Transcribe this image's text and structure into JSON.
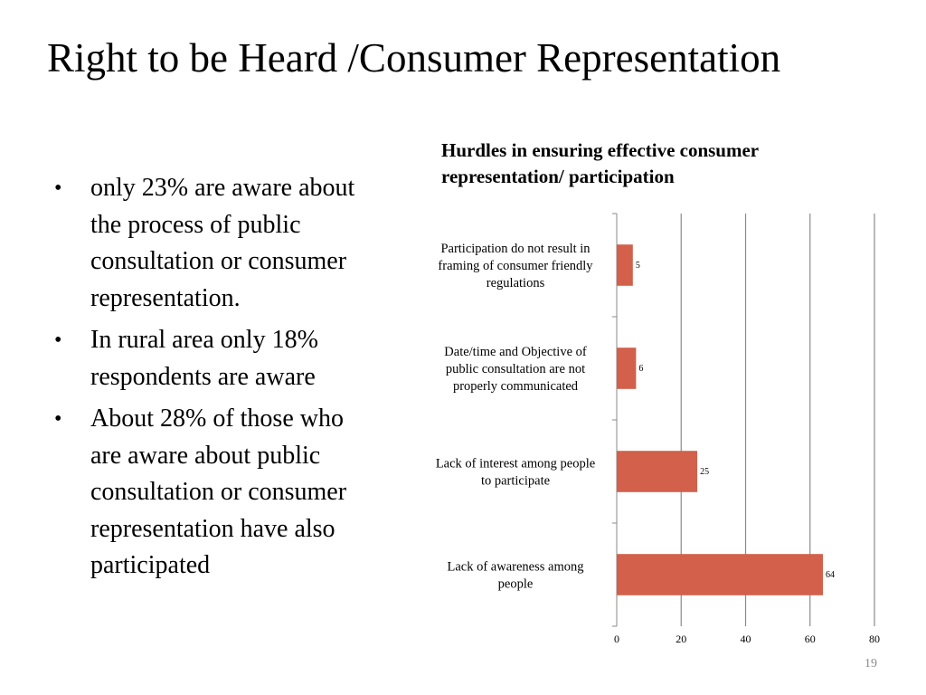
{
  "slide": {
    "title": "Right to be Heard /Consumer Representation",
    "page_number": "19",
    "bullets": [
      "only 23% are aware about the process of public consultation or consumer representation.",
      "In rural area only 18% respondents are aware",
      "About 28% of  those who are aware about public consultation or consumer representation have also participated"
    ]
  },
  "chart_data": {
    "type": "bar",
    "orientation": "horizontal",
    "title": [
      "Hurdles in ensuring effective consumer",
      "representation/ participation"
    ],
    "categories": [
      [
        "Participation do not result in",
        "framing of consumer friendly",
        "regulations"
      ],
      [
        "Date/time and Objective of",
        "public consultation are not",
        "properly communicated"
      ],
      [
        "Lack of interest among people",
        "to participate"
      ],
      [
        "Lack of awareness among",
        "people"
      ]
    ],
    "values": [
      5,
      6,
      25,
      64
    ],
    "data_labels": [
      "5",
      "6",
      "25",
      "64"
    ],
    "xlim": [
      0,
      80
    ],
    "xticks": [
      0,
      20,
      40,
      60,
      80
    ],
    "xtick_labels": [
      "0",
      "20",
      "40",
      "60",
      "80"
    ],
    "grid": true,
    "bar_color": "#d2604a",
    "grid_color": "#8a8a8a"
  }
}
